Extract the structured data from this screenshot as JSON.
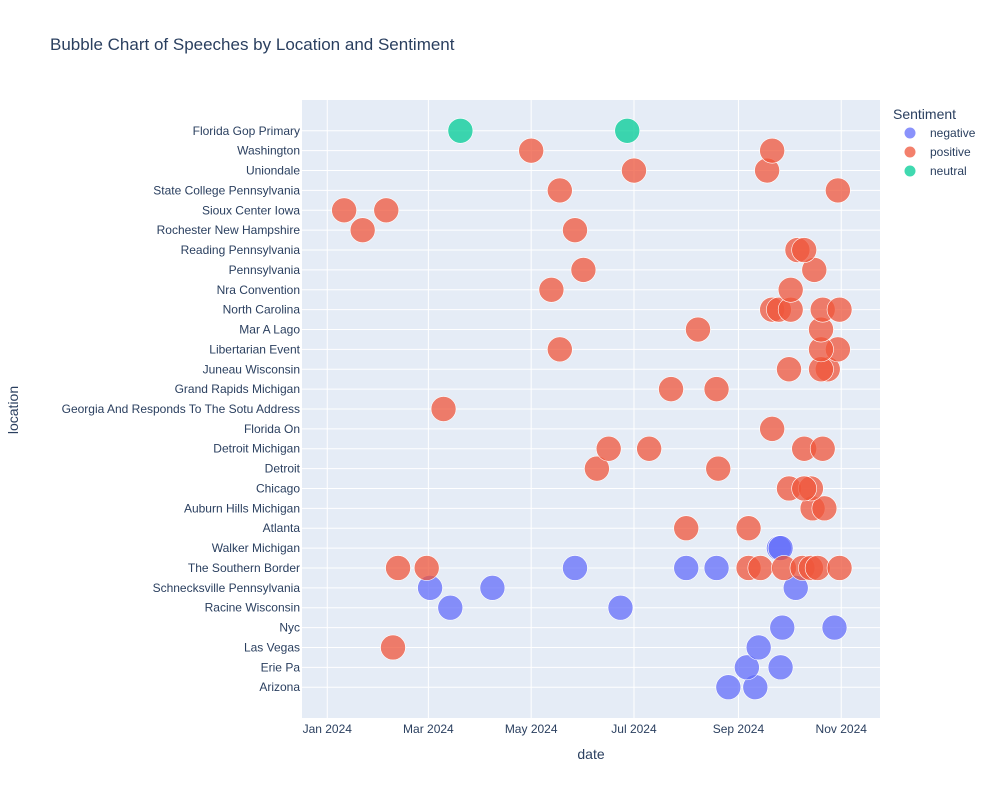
{
  "chart_data": {
    "type": "scatter",
    "title": "Bubble Chart of Speeches by Location and Sentiment",
    "xlabel": "date",
    "ylabel": "location",
    "xlim": [
      "2023-12-17",
      "2024-11-24"
    ],
    "x_ticks": [
      {
        "value": "2024-01-01",
        "label": "Jan 2024"
      },
      {
        "value": "2024-03-01",
        "label": "Mar 2024"
      },
      {
        "value": "2024-05-01",
        "label": "May 2024"
      },
      {
        "value": "2024-07-01",
        "label": "Jul 2024"
      },
      {
        "value": "2024-09-01",
        "label": "Sep 2024"
      },
      {
        "value": "2024-11-01",
        "label": "Nov 2024"
      }
    ],
    "categories": [
      "Arizona",
      "Erie Pa",
      "Las Vegas",
      "Nyc",
      "Racine Wisconsin",
      "Schnecksville Pennsylvania",
      "The Southern Border",
      "Walker Michigan",
      "Atlanta",
      "Auburn Hills Michigan",
      "Chicago",
      "Detroit",
      "Detroit Michigan",
      "Florida On",
      "Georgia And Responds To The Sotu Address",
      "Grand Rapids Michigan",
      "Juneau Wisconsin",
      "Libertarian Event",
      "Mar A Lago",
      "North Carolina",
      "Nra Convention",
      "Pennsylvania",
      "Reading Pennsylvania",
      "Rochester New Hampshire",
      "Sioux Center Iowa",
      "State College Pennsylvania",
      "Uniondale",
      "Washington",
      "Florida Gop Primary"
    ],
    "grid": true,
    "legend": {
      "title": "Sentiment",
      "placement": "top-right"
    },
    "series": [
      {
        "name": "negative",
        "color": "#636efa",
        "points": [
          {
            "x": "2024-08-26",
            "y": "Arizona"
          },
          {
            "x": "2024-09-11",
            "y": "Arizona"
          },
          {
            "x": "2024-09-26",
            "y": "Erie Pa"
          },
          {
            "x": "2024-09-06",
            "y": "Erie Pa"
          },
          {
            "x": "2024-09-13",
            "y": "Las Vegas"
          },
          {
            "x": "2024-10-28",
            "y": "Nyc"
          },
          {
            "x": "2024-09-27",
            "y": "Nyc"
          },
          {
            "x": "2024-03-02",
            "y": "Schnecksville Pennsylvania"
          },
          {
            "x": "2024-03-14",
            "y": "Racine Wisconsin"
          },
          {
            "x": "2024-06-23",
            "y": "Racine Wisconsin"
          },
          {
            "x": "2024-04-08",
            "y": "Schnecksville Pennsylvania"
          },
          {
            "x": "2024-10-05",
            "y": "Schnecksville Pennsylvania"
          },
          {
            "x": "2024-05-27",
            "y": "The Southern Border"
          },
          {
            "x": "2024-08-01",
            "y": "The Southern Border"
          },
          {
            "x": "2024-08-19",
            "y": "The Southern Border"
          },
          {
            "x": "2024-09-25",
            "y": "Walker Michigan"
          },
          {
            "x": "2024-09-26",
            "y": "Walker Michigan"
          }
        ]
      },
      {
        "name": "positive",
        "color": "#ef553b",
        "points": [
          {
            "x": "2024-02-09",
            "y": "Las Vegas"
          },
          {
            "x": "2024-02-12",
            "y": "The Southern Border"
          },
          {
            "x": "2024-02-29",
            "y": "The Southern Border"
          },
          {
            "x": "2024-09-07",
            "y": "The Southern Border"
          },
          {
            "x": "2024-09-14",
            "y": "The Southern Border"
          },
          {
            "x": "2024-09-28",
            "y": "The Southern Border"
          },
          {
            "x": "2024-10-09",
            "y": "The Southern Border"
          },
          {
            "x": "2024-10-14",
            "y": "The Southern Border"
          },
          {
            "x": "2024-10-18",
            "y": "The Southern Border"
          },
          {
            "x": "2024-10-31",
            "y": "The Southern Border"
          },
          {
            "x": "2024-09-07",
            "y": "Atlanta"
          },
          {
            "x": "2024-08-01",
            "y": "Atlanta"
          },
          {
            "x": "2024-10-15",
            "y": "Auburn Hills Michigan"
          },
          {
            "x": "2024-10-22",
            "y": "Auburn Hills Michigan"
          },
          {
            "x": "2024-10-01",
            "y": "Chicago"
          },
          {
            "x": "2024-10-14",
            "y": "Chicago"
          },
          {
            "x": "2024-10-10",
            "y": "Chicago"
          },
          {
            "x": "2024-08-20",
            "y": "Detroit"
          },
          {
            "x": "2024-06-09",
            "y": "Detroit"
          },
          {
            "x": "2024-06-16",
            "y": "Detroit Michigan"
          },
          {
            "x": "2024-07-10",
            "y": "Detroit Michigan"
          },
          {
            "x": "2024-10-10",
            "y": "Detroit Michigan"
          },
          {
            "x": "2024-10-21",
            "y": "Detroit Michigan"
          },
          {
            "x": "2024-09-21",
            "y": "Florida On"
          },
          {
            "x": "2024-03-10",
            "y": "Georgia And Responds To The Sotu Address"
          },
          {
            "x": "2024-07-23",
            "y": "Grand Rapids Michigan"
          },
          {
            "x": "2024-08-19",
            "y": "Grand Rapids Michigan"
          },
          {
            "x": "2024-10-01",
            "y": "Juneau Wisconsin"
          },
          {
            "x": "2024-10-24",
            "y": "Juneau Wisconsin"
          },
          {
            "x": "2024-10-20",
            "y": "Juneau Wisconsin"
          },
          {
            "x": "2024-05-18",
            "y": "Libertarian Event"
          },
          {
            "x": "2024-10-30",
            "y": "Libertarian Event"
          },
          {
            "x": "2024-10-20",
            "y": "Libertarian Event"
          },
          {
            "x": "2024-08-08",
            "y": "Mar A Lago"
          },
          {
            "x": "2024-10-20",
            "y": "Mar A Lago"
          },
          {
            "x": "2024-09-21",
            "y": "North Carolina"
          },
          {
            "x": "2024-09-25",
            "y": "North Carolina"
          },
          {
            "x": "2024-10-02",
            "y": "North Carolina"
          },
          {
            "x": "2024-10-21",
            "y": "North Carolina"
          },
          {
            "x": "2024-10-31",
            "y": "North Carolina"
          },
          {
            "x": "2024-05-13",
            "y": "Nra Convention"
          },
          {
            "x": "2024-06-01",
            "y": "Pennsylvania"
          },
          {
            "x": "2024-10-02",
            "y": "Nra Convention"
          },
          {
            "x": "2024-10-16",
            "y": "Pennsylvania"
          },
          {
            "x": "2024-10-06",
            "y": "Reading Pennsylvania"
          },
          {
            "x": "2024-10-10",
            "y": "Reading Pennsylvania"
          },
          {
            "x": "2024-01-22",
            "y": "Rochester New Hampshire"
          },
          {
            "x": "2024-05-27",
            "y": "Rochester New Hampshire"
          },
          {
            "x": "2024-01-11",
            "y": "Sioux Center Iowa"
          },
          {
            "x": "2024-02-05",
            "y": "Sioux Center Iowa"
          },
          {
            "x": "2024-05-18",
            "y": "State College Pennsylvania"
          },
          {
            "x": "2024-10-30",
            "y": "State College Pennsylvania"
          },
          {
            "x": "2024-07-01",
            "y": "Uniondale"
          },
          {
            "x": "2024-09-18",
            "y": "Uniondale"
          },
          {
            "x": "2024-05-01",
            "y": "Washington"
          },
          {
            "x": "2024-09-21",
            "y": "Washington"
          }
        ]
      },
      {
        "name": "neutral",
        "color": "#00cc96",
        "points": [
          {
            "x": "2024-03-20",
            "y": "Florida Gop Primary"
          },
          {
            "x": "2024-06-27",
            "y": "Florida Gop Primary"
          }
        ]
      }
    ]
  }
}
